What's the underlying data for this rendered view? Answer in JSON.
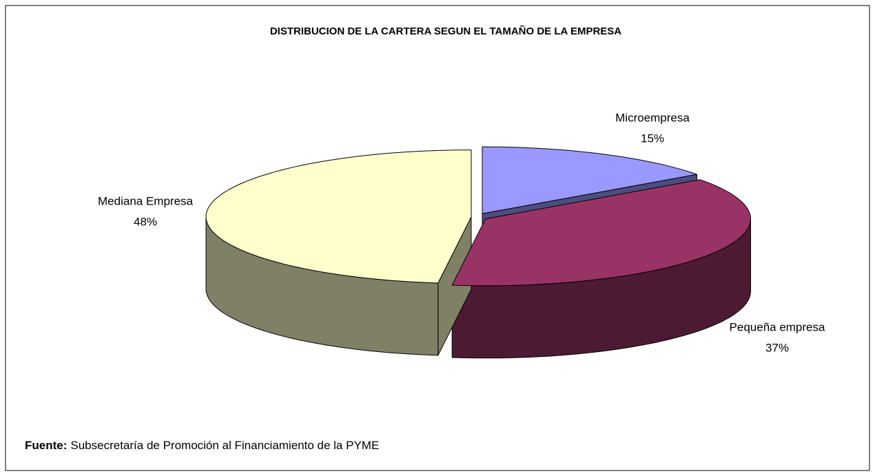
{
  "chart_data": {
    "type": "pie",
    "title": "DISTRIBUCION DE LA CARTERA SEGUN EL TAMAÑO DE LA EMPRESA",
    "categories": [
      "Microempresa",
      "Pequeña empresa",
      "Mediana Empresa"
    ],
    "values": [
      15,
      37,
      48
    ],
    "value_labels": [
      "15%",
      "37%",
      "48%"
    ],
    "colors": [
      "#9999ff",
      "#993366",
      "#ffffcc"
    ],
    "source": {
      "label": "Fuente:",
      "text": "Subsecretaría de Promoción al Financiamiento de la PYME"
    }
  }
}
